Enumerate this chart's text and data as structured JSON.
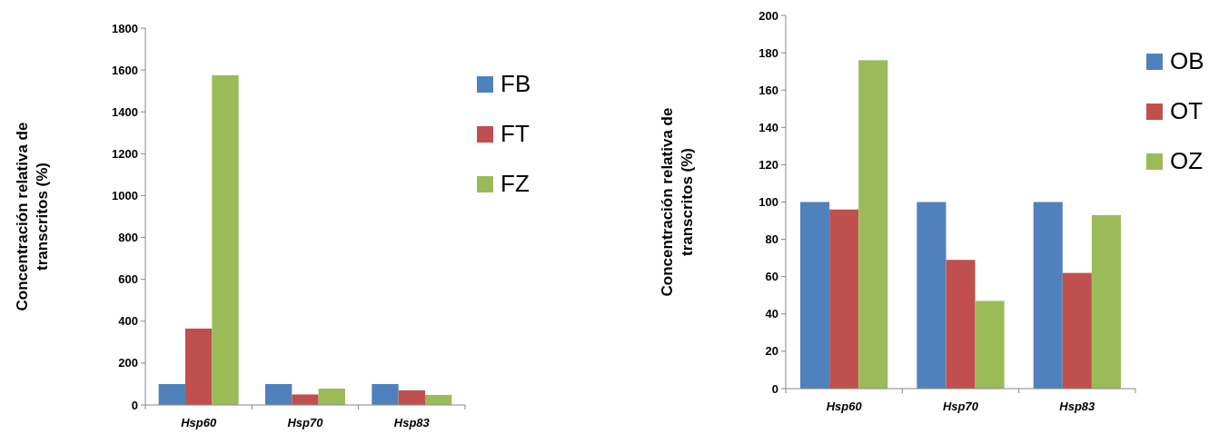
{
  "chart_data": [
    {
      "type": "bar",
      "ylabel": "Concentración relativa de transcritos (%)",
      "categories": [
        "Hsp60",
        "Hsp70",
        "Hsp83"
      ],
      "series": [
        {
          "name": "FB",
          "color": "#4f81bd",
          "values": [
            100,
            100,
            100
          ]
        },
        {
          "name": "FT",
          "color": "#c0504d",
          "values": [
            365,
            50,
            70
          ]
        },
        {
          "name": "FZ",
          "color": "#9bbb59",
          "values": [
            1575,
            78,
            48
          ]
        }
      ],
      "ylim": [
        0,
        1800
      ],
      "yticks": [
        0,
        200,
        400,
        600,
        800,
        1000,
        1200,
        1400,
        1600,
        1800
      ],
      "grid": false,
      "legend": "top right"
    },
    {
      "type": "bar",
      "ylabel": "Concentración relativa de transcritos (%)",
      "categories": [
        "Hsp60",
        "Hsp70",
        "Hsp83"
      ],
      "series": [
        {
          "name": "OB",
          "color": "#4f81bd",
          "values": [
            100,
            100,
            100
          ]
        },
        {
          "name": "OT",
          "color": "#c0504d",
          "values": [
            96,
            69,
            62
          ]
        },
        {
          "name": "OZ",
          "color": "#9bbb59",
          "values": [
            176,
            47,
            93
          ]
        }
      ],
      "ylim": [
        0,
        200
      ],
      "yticks": [
        0,
        20,
        40,
        60,
        80,
        100,
        120,
        140,
        160,
        180,
        200
      ],
      "grid": false,
      "legend": "top right"
    }
  ]
}
